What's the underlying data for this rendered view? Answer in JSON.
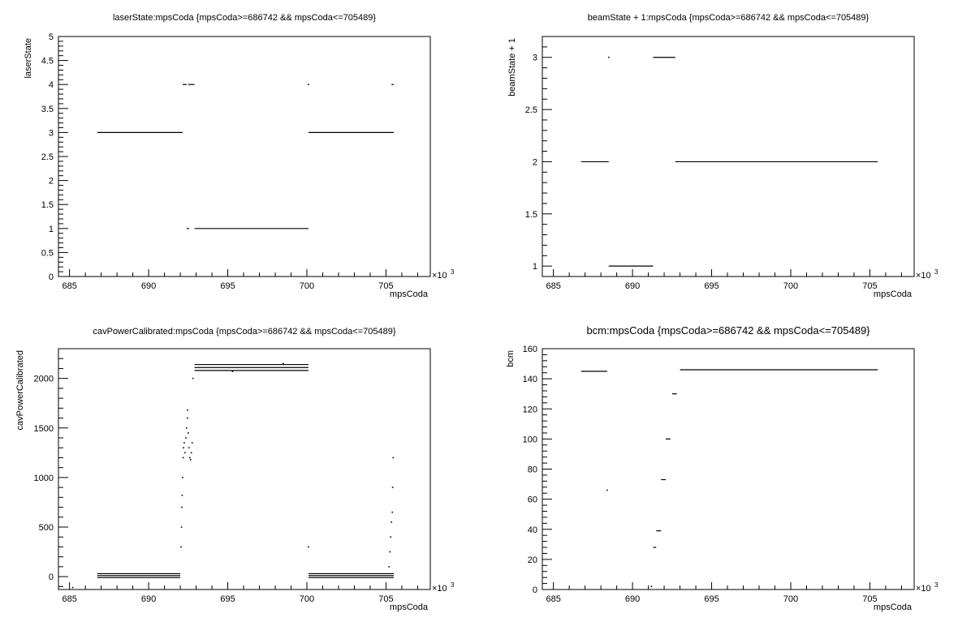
{
  "chart_data": [
    {
      "type": "scatter",
      "title": "laserState:mpsCoda {mpsCoda>=686742 && mpsCoda<=705489}",
      "xlabel": "mpsCoda",
      "ylabel": "laserState",
      "x_exponent": "×10",
      "x_exponent_power": "3",
      "xlim": [
        684.3,
        707.8
      ],
      "ylim": [
        0,
        5
      ],
      "xticks": [
        685,
        690,
        695,
        700,
        705
      ],
      "yticks": [
        0,
        0.5,
        1,
        1.5,
        2,
        2.5,
        3,
        3.5,
        4,
        4.5,
        5
      ],
      "segments": [
        {
          "x0": 686.75,
          "x1": 692.15,
          "y": 3
        },
        {
          "x0": 692.15,
          "x1": 692.4,
          "y": 4
        },
        {
          "x0": 692.5,
          "x1": 692.9,
          "y": 4
        },
        {
          "x0": 692.4,
          "x1": 692.55,
          "y": 1
        },
        {
          "x0": 692.9,
          "x1": 700.1,
          "y": 1
        },
        {
          "x0": 700.1,
          "x1": 705.49,
          "y": 3
        },
        {
          "x0": 705.35,
          "x1": 705.49,
          "y": 4
        }
      ],
      "points": [
        {
          "x": 700.1,
          "y": 4
        }
      ]
    },
    {
      "type": "scatter",
      "title": "beamState + 1:mpsCoda {mpsCoda>=686742 && mpsCoda<=705489}",
      "xlabel": "mpsCoda",
      "ylabel": "beamState + 1",
      "x_exponent": "×10",
      "x_exponent_power": "3",
      "xlim": [
        684.3,
        707.8
      ],
      "ylim": [
        0.9,
        3.2
      ],
      "xticks": [
        685,
        690,
        695,
        700,
        705
      ],
      "yticks": [
        1,
        1.5,
        2,
        2.5,
        3
      ],
      "segments": [
        {
          "x0": 686.75,
          "x1": 688.5,
          "y": 2
        },
        {
          "x0": 688.5,
          "x1": 691.3,
          "y": 1
        },
        {
          "x0": 691.3,
          "x1": 692.7,
          "y": 3
        },
        {
          "x0": 692.7,
          "x1": 705.49,
          "y": 2
        }
      ],
      "points": [
        {
          "x": 688.5,
          "y": 3
        }
      ]
    },
    {
      "type": "scatter",
      "title": "cavPowerCalibrated:mpsCoda {mpsCoda>=686742 && mpsCoda<=705489}",
      "xlabel": "mpsCoda",
      "ylabel": "cavPowerCalibrated",
      "x_exponent": "×10",
      "x_exponent_power": "3",
      "xlim": [
        684.3,
        707.8
      ],
      "ylim": [
        -130,
        2300
      ],
      "xticks": [
        685,
        690,
        695,
        700,
        705
      ],
      "yticks": [
        0,
        500,
        1000,
        1500,
        2000
      ],
      "segments": [
        {
          "x0": 686.75,
          "x1": 692.0,
          "y": 30
        },
        {
          "x0": 686.75,
          "x1": 692.0,
          "y": 10
        },
        {
          "x0": 686.75,
          "x1": 692.0,
          "y": -10
        },
        {
          "x0": 692.9,
          "x1": 700.1,
          "y": 2140
        },
        {
          "x0": 692.9,
          "x1": 700.1,
          "y": 2110
        },
        {
          "x0": 692.9,
          "x1": 700.1,
          "y": 2080
        },
        {
          "x0": 700.1,
          "x1": 705.49,
          "y": 30
        },
        {
          "x0": 700.1,
          "x1": 705.49,
          "y": 10
        },
        {
          "x0": 700.1,
          "x1": 705.49,
          "y": -10
        }
      ],
      "points": [
        {
          "x": 685.2,
          "y": -110
        },
        {
          "x": 692.05,
          "y": 300
        },
        {
          "x": 692.08,
          "y": 500
        },
        {
          "x": 692.1,
          "y": 700
        },
        {
          "x": 692.12,
          "y": 820
        },
        {
          "x": 692.15,
          "y": 1000
        },
        {
          "x": 692.18,
          "y": 1200
        },
        {
          "x": 692.2,
          "y": 1300
        },
        {
          "x": 692.25,
          "y": 1350
        },
        {
          "x": 692.3,
          "y": 1250
        },
        {
          "x": 692.35,
          "y": 1400
        },
        {
          "x": 692.4,
          "y": 1500
        },
        {
          "x": 692.45,
          "y": 1600
        },
        {
          "x": 692.5,
          "y": 1450
        },
        {
          "x": 692.55,
          "y": 1300
        },
        {
          "x": 692.6,
          "y": 1200
        },
        {
          "x": 692.65,
          "y": 1180
        },
        {
          "x": 692.7,
          "y": 1250
        },
        {
          "x": 692.75,
          "y": 1350
        },
        {
          "x": 692.8,
          "y": 2000
        },
        {
          "x": 692.45,
          "y": 1680
        },
        {
          "x": 695.3,
          "y": 2070
        },
        {
          "x": 698.5,
          "y": 2150
        },
        {
          "x": 700.1,
          "y": 300
        },
        {
          "x": 705.2,
          "y": 100
        },
        {
          "x": 705.25,
          "y": 250
        },
        {
          "x": 705.3,
          "y": 400
        },
        {
          "x": 705.35,
          "y": 550
        },
        {
          "x": 705.4,
          "y": 650
        },
        {
          "x": 705.42,
          "y": 900
        },
        {
          "x": 705.45,
          "y": 1200
        }
      ]
    },
    {
      "type": "scatter",
      "title": "bcm:mpsCoda {mpsCoda>=686742 && mpsCoda<=705489}",
      "xlabel": "mpsCoda",
      "ylabel": "bcm",
      "x_exponent": "×10",
      "x_exponent_power": "3",
      "xlim": [
        684.3,
        707.8
      ],
      "ylim": [
        0,
        160
      ],
      "xticks": [
        685,
        690,
        695,
        700,
        705
      ],
      "yticks": [
        0,
        20,
        40,
        60,
        80,
        100,
        120,
        140,
        160
      ],
      "segments": [
        {
          "x0": 686.75,
          "x1": 688.4,
          "y": 145
        },
        {
          "x0": 691.3,
          "x1": 691.5,
          "y": 28
        },
        {
          "x0": 691.5,
          "x1": 691.8,
          "y": 39
        },
        {
          "x0": 691.8,
          "x1": 692.1,
          "y": 73
        },
        {
          "x0": 692.1,
          "x1": 692.4,
          "y": 100
        },
        {
          "x0": 692.5,
          "x1": 692.8,
          "y": 130
        },
        {
          "x0": 693.0,
          "x1": 705.49,
          "y": 146
        }
      ],
      "points": [
        {
          "x": 688.4,
          "y": 66
        },
        {
          "x": 691.2,
          "y": 2
        }
      ]
    }
  ]
}
